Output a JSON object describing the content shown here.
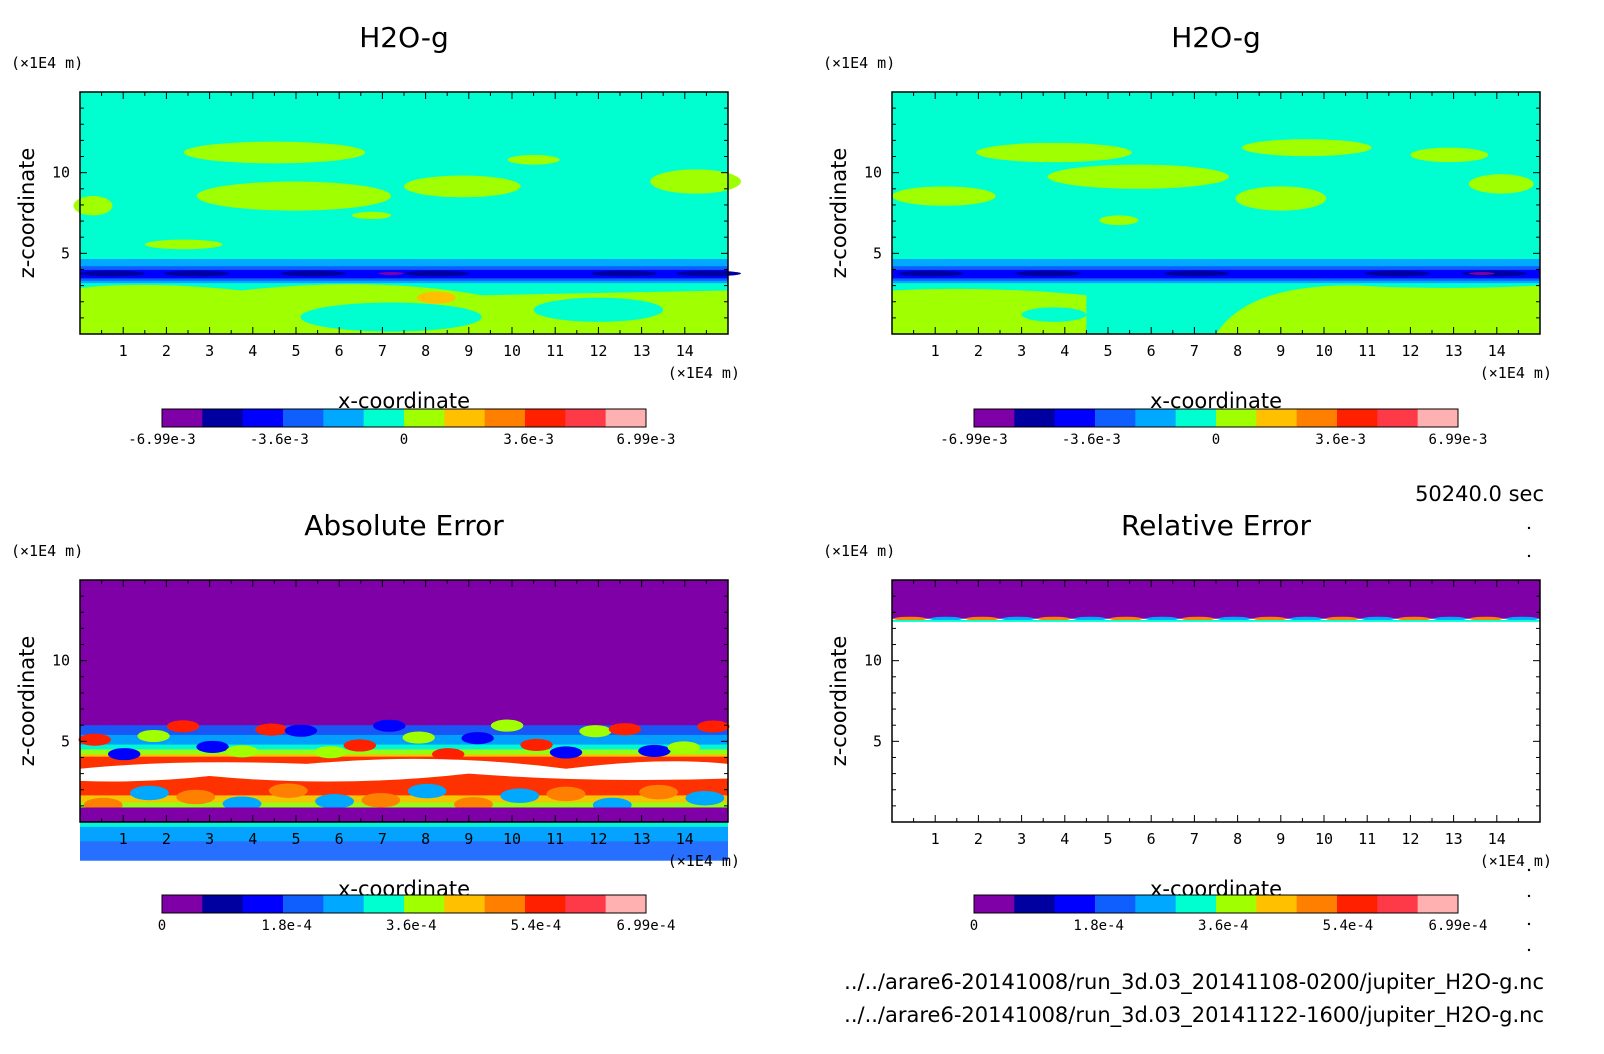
{
  "time_label": "50240.0 sec",
  "files": [
    "../../arare6-20141008/run_3d.03_20141108-0200/jupiter_H2O-g.nc",
    "../../arare6-20141008/run_3d.03_20141122-1600/jupiter_H2O-g.nc"
  ],
  "palette": [
    "#7f00a6",
    "#0000a0",
    "#0000ff",
    "#0f5fff",
    "#00a8ff",
    "#00ffd0",
    "#a0ff00",
    "#ffc000",
    "#ff7f00",
    "#ff2000",
    "#ff3a48",
    "#ffb0b0"
  ],
  "chart_data": [
    {
      "type": "heatmap",
      "title": "H2O-g",
      "xlabel": "x-coordinate",
      "ylabel": "z-coordinate",
      "xunit": "(×1E4 m)",
      "yunit": "(×1E4 m)",
      "xlim": [
        0,
        15
      ],
      "ylim": [
        0,
        15
      ],
      "xticks": [
        "1",
        "2",
        "3",
        "4",
        "5",
        "6",
        "7",
        "8",
        "9",
        "10",
        "11",
        "12",
        "13",
        "14"
      ],
      "yticks": [
        "5",
        "10"
      ],
      "colorbar": {
        "min": -0.00699,
        "max": 0.00699,
        "labels": [
          "-6.99e-3",
          "-3.6e-3",
          "0",
          "3.6e-3",
          "6.99e-3"
        ]
      }
    },
    {
      "type": "heatmap",
      "title": "H2O-g",
      "xlabel": "x-coordinate",
      "ylabel": "z-coordinate",
      "xunit": "(×1E4 m)",
      "yunit": "(×1E4 m)",
      "xlim": [
        0,
        15
      ],
      "ylim": [
        0,
        15
      ],
      "xticks": [
        "1",
        "2",
        "3",
        "4",
        "5",
        "6",
        "7",
        "8",
        "9",
        "10",
        "11",
        "12",
        "13",
        "14"
      ],
      "yticks": [
        "5",
        "10"
      ],
      "colorbar": {
        "min": -0.00699,
        "max": 0.00699,
        "labels": [
          "-6.99e-3",
          "-3.6e-3",
          "0",
          "3.6e-3",
          "6.99e-3"
        ]
      }
    },
    {
      "type": "heatmap",
      "title": "Absolute Error",
      "xlabel": "x-coordinate",
      "ylabel": "z-coordinate",
      "xunit": "(×1E4 m)",
      "yunit": "(×1E4 m)",
      "xlim": [
        0,
        15
      ],
      "ylim": [
        0,
        15
      ],
      "xticks": [
        "1",
        "2",
        "3",
        "4",
        "5",
        "6",
        "7",
        "8",
        "9",
        "10",
        "11",
        "12",
        "13",
        "14"
      ],
      "yticks": [
        "5",
        "10"
      ],
      "colorbar": {
        "min": 0,
        "max": 0.000699,
        "labels": [
          "0",
          "1.8e-4",
          "3.6e-4",
          "5.4e-4",
          "6.99e-4"
        ]
      }
    },
    {
      "type": "heatmap",
      "title": "Relative Error",
      "xlabel": "x-coordinate",
      "ylabel": "z-coordinate",
      "xunit": "(×1E4 m)",
      "yunit": "(×1E4 m)",
      "xlim": [
        0,
        15
      ],
      "ylim": [
        0,
        15
      ],
      "xticks": [
        "1",
        "2",
        "3",
        "4",
        "5",
        "6",
        "7",
        "8",
        "9",
        "10",
        "11",
        "12",
        "13",
        "14"
      ],
      "yticks": [
        "5",
        "10"
      ],
      "colorbar": {
        "min": 0,
        "max": 0.000699,
        "labels": [
          "0",
          "1.8e-4",
          "3.6e-4",
          "5.4e-4",
          "6.99e-4"
        ]
      }
    }
  ]
}
